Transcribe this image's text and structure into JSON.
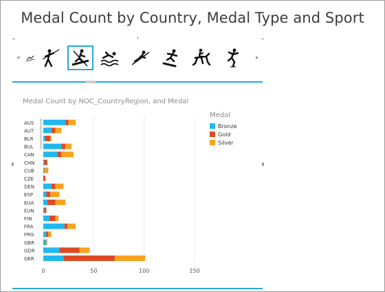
{
  "title": "Medal Count by Country, Medal Type and Sport",
  "tiles": [
    {
      "icon": "ski-icon",
      "selected": false
    },
    {
      "icon": "javelin-icon",
      "selected": false
    },
    {
      "icon": "canoe-icon",
      "selected": true
    },
    {
      "icon": "swimming-icon",
      "selected": false
    },
    {
      "icon": "ski-jump-icon",
      "selected": false
    },
    {
      "icon": "snowboard-icon",
      "selected": false
    },
    {
      "icon": "equestrian-icon",
      "selected": false
    },
    {
      "icon": "skating-icon",
      "selected": false
    }
  ],
  "nav": {
    "prev": "◂",
    "next": "▸"
  },
  "colors": {
    "accent": "#28a6df",
    "bronze": "#1fb8ef",
    "gold": "#dc4a24",
    "silver": "#f7a320"
  },
  "chart_data": {
    "type": "bar",
    "orientation": "horizontal",
    "stacked": true,
    "title": "Medal Count by NOC_CountryRegion, and Medal",
    "legend_title": "Medal",
    "legend_position": "right",
    "categories": [
      "AUS",
      "AUT",
      "BLR",
      "BUL",
      "CAN",
      "CHN",
      "CUB",
      "CZE",
      "DEN",
      "ESP",
      "EUA",
      "EUN",
      "FIN",
      "FRA",
      "FRG",
      "GBR",
      "GDR",
      "GER"
    ],
    "series": [
      {
        "name": "Bronze",
        "color": "#1fb8ef",
        "values": [
          22,
          8,
          2,
          18,
          14,
          1,
          1,
          0,
          8,
          3,
          4,
          1,
          6,
          21,
          3,
          3,
          16,
          20
        ]
      },
      {
        "name": "Gold",
        "color": "#dc4a24",
        "values": [
          3,
          4,
          5,
          4,
          4,
          3,
          0,
          2,
          4,
          4,
          8,
          2,
          6,
          3,
          2,
          0,
          20,
          51
        ]
      },
      {
        "name": "Silver",
        "color": "#f7a320",
        "values": [
          7,
          6,
          1,
          6,
          12,
          0,
          4,
          0,
          8,
          9,
          10,
          0,
          3,
          8,
          3,
          1,
          10,
          30
        ]
      }
    ],
    "xlim": [
      0,
      150
    ],
    "xticks": [
      0,
      50,
      100,
      150
    ],
    "grid": true
  }
}
